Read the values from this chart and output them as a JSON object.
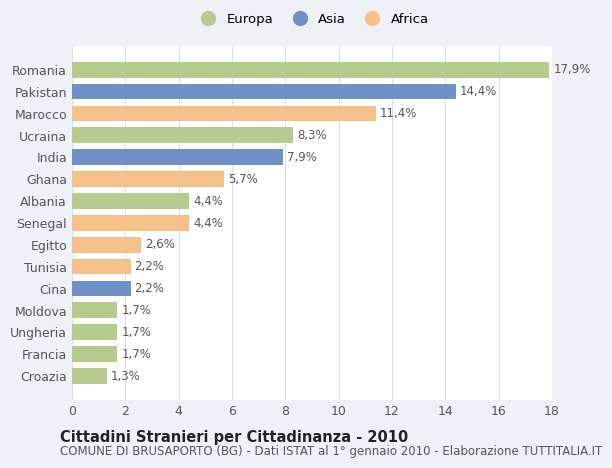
{
  "countries": [
    "Romania",
    "Pakistan",
    "Marocco",
    "Ucraina",
    "India",
    "Ghana",
    "Albania",
    "Senegal",
    "Egitto",
    "Tunisia",
    "Cina",
    "Moldova",
    "Ungheria",
    "Francia",
    "Croazia"
  ],
  "values": [
    17.9,
    14.4,
    11.4,
    8.3,
    7.9,
    5.7,
    4.4,
    4.4,
    2.6,
    2.2,
    2.2,
    1.7,
    1.7,
    1.7,
    1.3
  ],
  "labels": [
    "17,9%",
    "14,4%",
    "11,4%",
    "8,3%",
    "7,9%",
    "5,7%",
    "4,4%",
    "4,4%",
    "2,6%",
    "2,2%",
    "2,2%",
    "1,7%",
    "1,7%",
    "1,7%",
    "1,3%"
  ],
  "continents": [
    "Europa",
    "Asia",
    "Africa",
    "Europa",
    "Asia",
    "Africa",
    "Europa",
    "Africa",
    "Africa",
    "Africa",
    "Asia",
    "Europa",
    "Europa",
    "Europa",
    "Europa"
  ],
  "colors": {
    "Europa": "#b5cc8e",
    "Asia": "#7090c8",
    "Africa": "#f5c08a"
  },
  "legend_labels": [
    "Europa",
    "Asia",
    "Africa"
  ],
  "xlim": [
    0,
    18
  ],
  "xticks": [
    0,
    2,
    4,
    6,
    8,
    10,
    12,
    14,
    16,
    18
  ],
  "title": "Cittadini Stranieri per Cittadinanza - 2010",
  "subtitle": "COMUNE DI BRUSAPORTO (BG) - Dati ISTAT al 1° gennaio 2010 - Elaborazione TUTTITALIA.IT",
  "background_color": "#eef2f7",
  "bar_background": "#ffffff",
  "grid_color": "#d8dee8",
  "title_fontsize": 10.5,
  "subtitle_fontsize": 8.5,
  "label_fontsize": 8.5,
  "ytick_fontsize": 9,
  "xtick_fontsize": 9
}
